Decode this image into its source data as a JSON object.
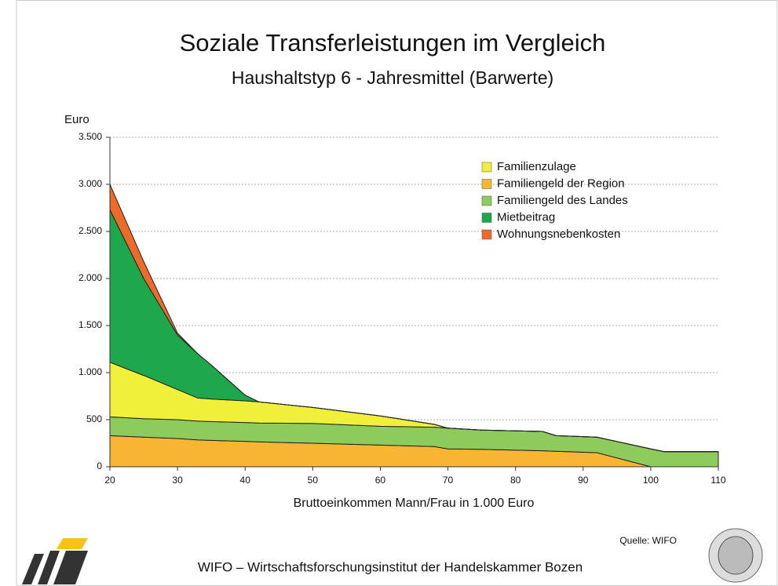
{
  "chart_data": {
    "type": "stacked_area",
    "title": "Soziale Transferleistungen im Vergleich",
    "subtitle": "Haushaltstyp 6 - Jahresmittel (Barwerte)",
    "y_label": "Euro",
    "x_label": "Bruttoeinkommen Mann/Frau in 1.000 Euro",
    "source": "Quelle: WIFO",
    "footer": "WIFO – Wirtschaftsforschungsinstitut der Handelskammer Bozen",
    "x": [
      20,
      25,
      30,
      33,
      35,
      40,
      42,
      50,
      60,
      68,
      70,
      75,
      84,
      86,
      92,
      100,
      102,
      110
    ],
    "series": [
      {
        "name": "Familiengeld der Region",
        "color": "#f7b531",
        "values": [
          330,
          315,
          300,
          285,
          280,
          270,
          265,
          250,
          230,
          215,
          190,
          185,
          170,
          165,
          150,
          0,
          0,
          0
        ]
      },
      {
        "name": "Familiengeld des Landes",
        "color": "#8ccb5c",
        "values": [
          200,
          195,
          200,
          200,
          200,
          200,
          200,
          210,
          200,
          205,
          220,
          205,
          205,
          165,
          165,
          190,
          160,
          160
        ]
      },
      {
        "name": "Familienzulage",
        "color": "#f0ef3a",
        "values": [
          580,
          460,
          320,
          245,
          240,
          230,
          225,
          170,
          110,
          30,
          0,
          0,
          0,
          0,
          0,
          0,
          0,
          0
        ]
      },
      {
        "name": "Mietbeitrag",
        "color": "#1ea84b",
        "values": [
          1620,
          1030,
          580,
          470,
          360,
          60,
          0,
          0,
          0,
          0,
          0,
          0,
          0,
          0,
          0,
          0,
          0,
          0
        ]
      },
      {
        "name": "Wohnungsnebenkosten",
        "color": "#ee6a2a",
        "values": [
          270,
          180,
          20,
          0,
          0,
          0,
          0,
          0,
          0,
          0,
          0,
          0,
          0,
          0,
          0,
          0,
          0,
          0
        ]
      }
    ],
    "legend_order": [
      2,
      0,
      1,
      3,
      4
    ],
    "xlim": [
      20,
      110
    ],
    "xticks": [
      20,
      30,
      40,
      50,
      60,
      70,
      80,
      90,
      100,
      110
    ],
    "ylim": [
      0,
      3500
    ],
    "yticks": [
      0,
      500,
      {
        "value": 1000,
        "label": "1.000"
      },
      {
        "value": 1500,
        "label": "1.500"
      },
      {
        "value": 2000,
        "label": "2.000"
      },
      {
        "value": 2500,
        "label": "2.500"
      },
      {
        "value": 3000,
        "label": "3.000"
      },
      {
        "value": 3500,
        "label": "3.500"
      }
    ],
    "grid": true
  }
}
